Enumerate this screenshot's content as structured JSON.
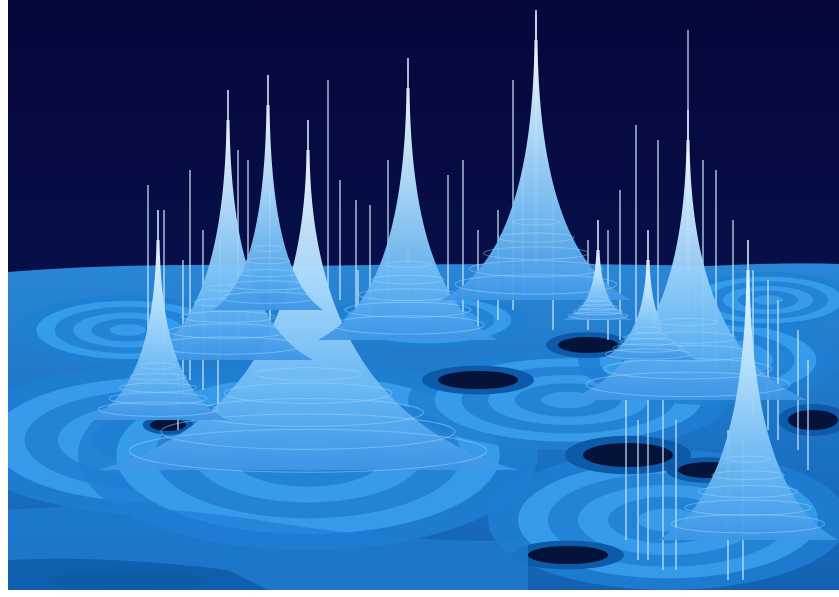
{
  "image": {
    "subject": "",
    "colors": {
      "sky": "#06093f",
      "horizon": "#0e4a8c",
      "plateau": "#2f8fe0",
      "basin_light": "#3aa0ee",
      "basin_mid": "#1f7fd4",
      "basin_dark": "#0c5aa8",
      "hole": "#05123a",
      "spike_tip": "#f4fbff",
      "spike_base": "#4fa7ef",
      "streak": "#cfe9ff",
      "border": "#ffffff"
    }
  }
}
